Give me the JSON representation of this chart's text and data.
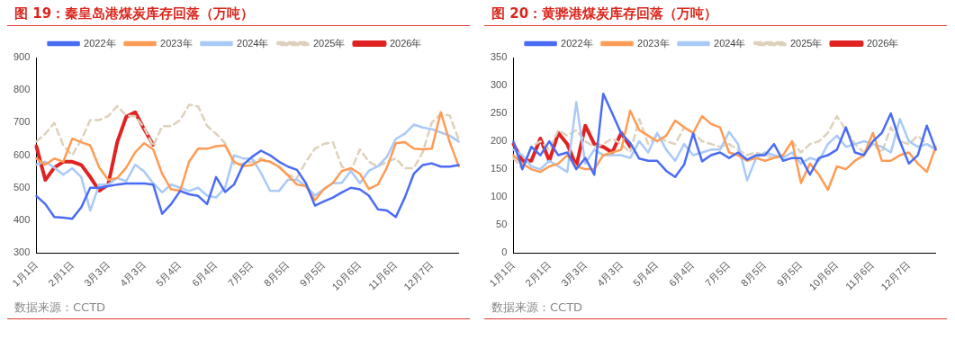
{
  "chart_data": [
    {
      "type": "line",
      "title": "图 19：秦皇岛港煤炭库存回落（万吨）",
      "categories": [
        "1月1日",
        null,
        null,
        null,
        "2月1日",
        null,
        null,
        null,
        "3月3日",
        null,
        null,
        null,
        "4月3日",
        null,
        null,
        null,
        "5月4日",
        null,
        null,
        null,
        "6月4日",
        null,
        null,
        null,
        "7月5日",
        null,
        null,
        null,
        "8月5日",
        null,
        null,
        null,
        "9月5日",
        null,
        null,
        null,
        "10月6日",
        null,
        null,
        null,
        "11月6日",
        null,
        null,
        null,
        "12月7日",
        null,
        null,
        null
      ],
      "series": [
        {
          "name": "2022年",
          "color": "#4a6cf5",
          "values": [
            475,
            450,
            410,
            408,
            405,
            440,
            500,
            500,
            505,
            510,
            513,
            513,
            513,
            510,
            420,
            450,
            490,
            480,
            475,
            450,
            533,
            487,
            510,
            570,
            595,
            614,
            600,
            580,
            565,
            555,
            514,
            445,
            458,
            470,
            486,
            500,
            495,
            476,
            434,
            430,
            410,
            470,
            543,
            570,
            575,
            565,
            565,
            570
          ]
        },
        {
          "name": "2023年",
          "color": "#ff9b54",
          "values": [
            590,
            571,
            590,
            580,
            651,
            640,
            630,
            562,
            524,
            530,
            562,
            609,
            637,
            618,
            543,
            495,
            491,
            580,
            620,
            620,
            628,
            630,
            580,
            566,
            570,
            585,
            580,
            565,
            538,
            510,
            505,
            462,
            496,
            515,
            552,
            560,
            543,
            496,
            510,
            562,
            637,
            640,
            620,
            618,
            620,
            732,
            640,
            566
          ]
        },
        {
          "name": "2024年",
          "color": "#a9c9f7",
          "values": [
            571,
            580,
            562,
            540,
            560,
            533,
            430,
            510,
            510,
            530,
            520,
            571,
            550,
            514,
            486,
            510,
            500,
            490,
            500,
            476,
            470,
            500,
            600,
            590,
            590,
            545,
            491,
            490,
            525,
            525,
            505,
            476,
            496,
            514,
            515,
            552,
            514,
            552,
            566,
            595,
            650,
            666,
            694,
            685,
            680,
            670,
            660,
            642
          ]
        },
        {
          "name": "2025年",
          "color": "#ddd1bb",
          "line_style": "dashed",
          "values": [
            642,
            666,
            699,
            630,
            600,
            647,
            708,
            708,
            720,
            751,
            722,
            720,
            685,
            628,
            689,
            689,
            708,
            755,
            750,
            690,
            666,
            637,
            571,
            575,
            580,
            590,
            580,
            562,
            540,
            530,
            580,
            620,
            635,
            640,
            565,
            552,
            618,
            580,
            565,
            580,
            590,
            560,
            560,
            610,
            700,
            727,
            722,
            647
          ]
        },
        {
          "name": "2026年",
          "color": "#e02222",
          "values": [
            628,
            524,
            562,
            580,
            580,
            570,
            533,
            491,
            510,
            640,
            718,
            732,
            680,
            632,
            null,
            null,
            null,
            null,
            null,
            null,
            null,
            null,
            null,
            null,
            null,
            null,
            null,
            null,
            null,
            null,
            null,
            null,
            null,
            null,
            null,
            null,
            null,
            null,
            null,
            null,
            null,
            null,
            null,
            null,
            null,
            null,
            null,
            null
          ]
        }
      ],
      "ylim": [
        300,
        900
      ],
      "yticks": [
        300,
        400,
        500,
        600,
        700,
        800,
        900
      ],
      "legend": "top",
      "marker": "none",
      "grid": false,
      "annotations": [
        "数据来源：CCTD"
      ]
    },
    {
      "type": "line",
      "title": "图 20：黄骅港煤炭库存回落（万吨）",
      "categories": [
        "1月1日",
        null,
        null,
        null,
        "2月1日",
        null,
        null,
        null,
        "3月3日",
        null,
        null,
        null,
        "4月3日",
        null,
        null,
        null,
        "5月4日",
        null,
        null,
        null,
        "6月4日",
        null,
        null,
        null,
        "7月5日",
        null,
        null,
        null,
        "8月5日",
        null,
        null,
        null,
        "9月5日",
        null,
        null,
        null,
        "10月6日",
        null,
        null,
        null,
        "11月6日",
        null,
        null,
        null,
        "12月7日",
        null,
        null,
        null
      ],
      "series": [
        {
          "name": "2022年",
          "color": "#4a6cf5",
          "values": [
            200,
            150,
            190,
            175,
            200,
            175,
            180,
            150,
            170,
            140,
            285,
            250,
            214,
            197,
            169,
            165,
            165,
            147,
            136,
            158,
            214,
            164,
            175,
            180,
            170,
            180,
            167,
            175,
            175,
            195,
            165,
            170,
            170,
            140,
            170,
            175,
            185,
            225,
            180,
            175,
            200,
            215,
            250,
            200,
            160,
            175,
            228,
            185
          ]
        },
        {
          "name": "2023年",
          "color": "#ff9b54",
          "values": [
            175,
            160,
            150,
            145,
            155,
            160,
            175,
            155,
            150,
            150,
            175,
            180,
            185,
            255,
            220,
            210,
            200,
            210,
            237,
            225,
            215,
            245,
            231,
            225,
            180,
            175,
            165,
            170,
            165,
            170,
            175,
            200,
            125,
            160,
            140,
            113,
            155,
            150,
            165,
            175,
            215,
            165,
            165,
            175,
            180,
            160,
            145,
            190
          ]
        },
        {
          "name": "2024年",
          "color": "#a9c9f7",
          "values": [
            185,
            175,
            155,
            150,
            165,
            155,
            145,
            270,
            160,
            185,
            175,
            175,
            175,
            170,
            200,
            180,
            215,
            185,
            165,
            195,
            175,
            180,
            185,
            185,
            217,
            195,
            130,
            170,
            180,
            175,
            170,
            180,
            160,
            170,
            165,
            195,
            210,
            190,
            195,
            200,
            195,
            190,
            180,
            240,
            200,
            190,
            195,
            185
          ]
        },
        {
          "name": "2025年",
          "color": "#ddd1bb",
          "line_style": "dashed",
          "values": [
            170,
            150,
            190,
            200,
            185,
            220,
            210,
            220,
            200,
            190,
            195,
            205,
            195,
            180,
            240,
            195,
            210,
            200,
            195,
            225,
            215,
            200,
            195,
            190,
            195,
            185,
            175,
            180,
            175,
            170,
            175,
            200,
            180,
            195,
            200,
            215,
            245,
            220,
            195,
            180,
            195,
            180,
            225,
            200,
            195,
            210,
            195,
            185
          ]
        },
        {
          "name": "2026年",
          "color": "#e02222",
          "values": [
            195,
            165,
            165,
            205,
            165,
            215,
            195,
            155,
            228,
            195,
            190,
            180,
            215,
            190,
            null,
            null,
            null,
            null,
            null,
            null,
            null,
            null,
            null,
            null,
            null,
            null,
            null,
            null,
            null,
            null,
            null,
            null,
            null,
            null,
            null,
            null,
            null,
            null,
            null,
            null,
            null,
            null,
            null,
            null,
            null,
            null,
            null,
            null
          ]
        }
      ],
      "ylim": [
        0,
        350
      ],
      "yticks": [
        0,
        50,
        100,
        150,
        200,
        250,
        300,
        350
      ],
      "legend": "top",
      "marker": "none",
      "grid": false,
      "annotations": [
        "数据来源：CCTD"
      ]
    }
  ]
}
